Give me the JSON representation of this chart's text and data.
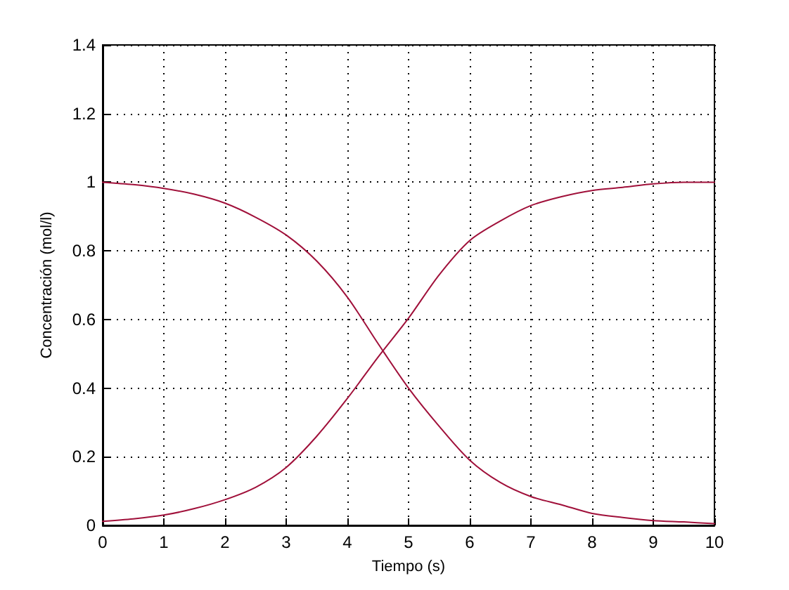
{
  "chart_data": {
    "type": "line",
    "xlabel": "Tiempo (s)",
    "ylabel": "Concentración (mol/l)",
    "x": [
      0,
      0.5,
      1,
      1.5,
      2,
      2.5,
      3,
      3.5,
      4,
      4.5,
      5,
      5.5,
      6,
      6.5,
      7,
      7.5,
      8,
      8.5,
      9,
      9.5,
      10
    ],
    "series": [
      {
        "color": "#a0103a",
        "values": [
          0.012,
          0.019,
          0.03,
          0.049,
          0.075,
          0.111,
          0.169,
          0.26,
          0.37,
          0.49,
          0.604,
          0.73,
          0.83,
          0.887,
          0.932,
          0.958,
          0.976,
          0.985,
          0.995,
          1.0,
          1.0
        ]
      },
      {
        "color": "#a0103a",
        "values": [
          1.0,
          0.993,
          0.982,
          0.965,
          0.939,
          0.898,
          0.846,
          0.77,
          0.665,
          0.53,
          0.4,
          0.289,
          0.19,
          0.125,
          0.084,
          0.06,
          0.035,
          0.023,
          0.014,
          0.01,
          0.005
        ]
      }
    ],
    "xlim": [
      0,
      10
    ],
    "xticks": [
      0,
      1,
      2,
      3,
      4,
      5,
      6,
      7,
      8,
      9,
      10
    ],
    "ylim": [
      0,
      1.4
    ],
    "yticks": [
      0,
      0.2,
      0.4,
      0.6,
      0.8,
      1,
      1.2,
      1.4
    ],
    "grid": true,
    "marker": "none",
    "line_style": "solid"
  }
}
